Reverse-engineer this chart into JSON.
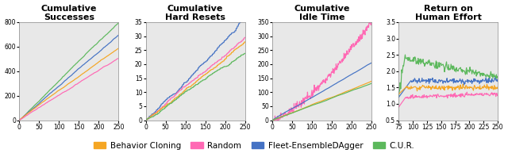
{
  "titles": [
    "Cumulative\nSuccesses",
    "Cumulative\nHard Resets",
    "Cumulative\nIdle Time",
    "Return on\nHuman Effort"
  ],
  "colors": {
    "bc": "#F5A623",
    "random": "#FF69B4",
    "fleet": "#4472C4",
    "cur": "#5CB85C"
  },
  "legend_labels": [
    "Behavior Cloning",
    "Random",
    "Fleet-EnsembleDAgger",
    "C.U.R."
  ],
  "plot1": {
    "xlim": [
      0,
      250
    ],
    "ylim": [
      0,
      800
    ],
    "yticks": [
      0,
      200,
      400,
      600,
      800
    ],
    "xticks": [
      0,
      50,
      100,
      150,
      200,
      250
    ]
  },
  "plot2": {
    "xlim": [
      0,
      250
    ],
    "ylim": [
      0,
      35
    ],
    "yticks": [
      0,
      5,
      10,
      15,
      20,
      25,
      30,
      35
    ],
    "xticks": [
      0,
      50,
      100,
      150,
      200,
      250
    ]
  },
  "plot3": {
    "xlim": [
      0,
      250
    ],
    "ylim": [
      0,
      350
    ],
    "yticks": [
      0,
      50,
      100,
      150,
      200,
      250,
      300,
      350
    ],
    "xticks": [
      0,
      50,
      100,
      150,
      200,
      250
    ]
  },
  "plot4": {
    "xlim": [
      75,
      250
    ],
    "ylim": [
      0.5,
      3.5
    ],
    "yticks": [
      0.5,
      1.0,
      1.5,
      2.0,
      2.5,
      3.0,
      3.5
    ],
    "xticks": [
      75,
      100,
      125,
      150,
      175,
      200,
      225,
      250
    ]
  },
  "background_color": "#e8e8e8",
  "title_fontsize": 8,
  "tick_fontsize": 5.5,
  "legend_fontsize": 7.5
}
